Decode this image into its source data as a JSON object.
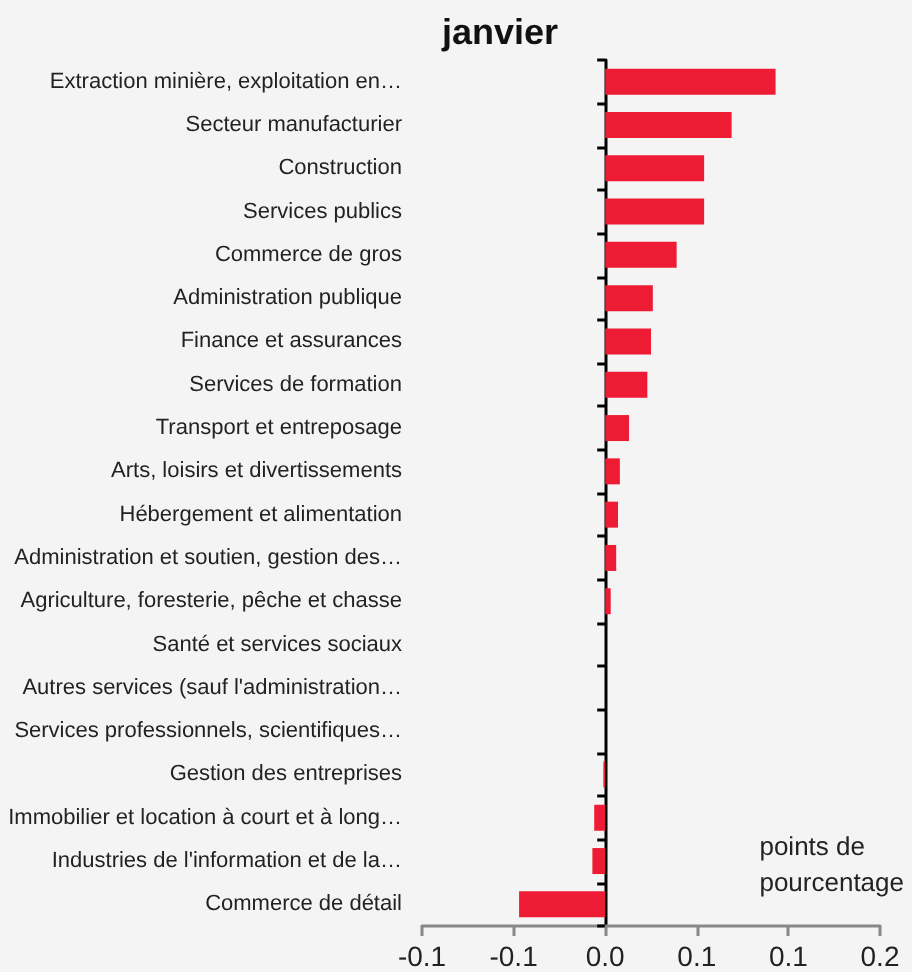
{
  "chart_data": {
    "type": "bar",
    "orientation": "horizontal",
    "title": "janvier",
    "categories": [
      "Extraction minière, exploitation en…",
      "Secteur manufacturier",
      "Construction",
      "Services publics",
      "Commerce de gros",
      "Administration publique",
      "Finance et assurances",
      "Services de formation",
      "Transport et entreposage",
      "Arts, loisirs et divertissements",
      "Hébergement et alimentation",
      "Administration et soutien, gestion des…",
      "Agriculture, foresterie, pêche et chasse",
      "Santé et services sociaux",
      "Autres services (sauf l'administration…",
      "Services professionnels, scientifiques…",
      "Gestion des entreprises",
      "Immobilier et location à court et à long…",
      "Industries de l'information et de la…",
      "Commerce de détail"
    ],
    "values": [
      0.093,
      0.069,
      0.054,
      0.054,
      0.039,
      0.026,
      0.025,
      0.023,
      0.013,
      0.008,
      0.007,
      0.006,
      0.003,
      0,
      0,
      0,
      -0.001,
      -0.006,
      -0.007,
      -0.047
    ],
    "color": "#ed1c34",
    "xlim": [
      -0.1,
      0.15
    ],
    "xticks": [
      {
        "value": -0.1,
        "label": "-0.1"
      },
      {
        "value": -0.05,
        "label": "-0.1"
      },
      {
        "value": 0,
        "label": "0.0"
      },
      {
        "value": 0.05,
        "label": "0.1"
      },
      {
        "value": 0.1,
        "label": "0.1"
      },
      {
        "value": 0.15,
        "label": "0.2"
      }
    ],
    "annotations": [
      "points de\npourcentage"
    ]
  }
}
